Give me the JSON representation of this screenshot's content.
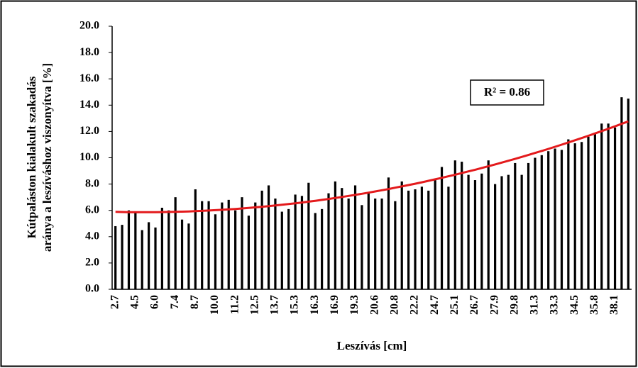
{
  "chart_data": {
    "type": "bar",
    "x_label": "Leszívás [cm]",
    "y_label": [
      "Kútpaláston kialakult szakadás",
      "aránya a leszíváshoz viszonyítva [%]"
    ],
    "annotation": "R² = 0.86",
    "categories": [
      "2.7",
      null,
      null,
      "4.5",
      null,
      null,
      "6.0",
      null,
      null,
      "7.4",
      null,
      null,
      "8.7",
      null,
      null,
      "10.0",
      null,
      null,
      "11.2",
      null,
      null,
      "12.5",
      null,
      null,
      "13.7",
      null,
      null,
      "15.3",
      null,
      null,
      "16.3",
      null,
      null,
      "16.9",
      null,
      null,
      "19.3",
      null,
      null,
      "20.6",
      null,
      null,
      "20.8",
      null,
      null,
      "22.2",
      null,
      null,
      "24.7",
      null,
      null,
      "25.1",
      null,
      null,
      "26.7",
      null,
      null,
      "27.9",
      null,
      null,
      "29.8",
      null,
      null,
      "31.3",
      null,
      null,
      "33.3",
      null,
      null,
      "34.5",
      null,
      null,
      "35.8",
      null,
      null,
      "38.1",
      null,
      null
    ],
    "values": [
      4.8,
      4.9,
      6.0,
      5.9,
      4.5,
      5.1,
      4.7,
      6.2,
      6.0,
      7.0,
      5.3,
      5.0,
      7.6,
      6.7,
      6.7,
      5.7,
      6.6,
      6.8,
      6.0,
      7.0,
      5.6,
      6.6,
      7.5,
      7.9,
      6.9,
      5.9,
      6.1,
      7.2,
      7.1,
      8.1,
      5.8,
      6.1,
      7.3,
      8.2,
      7.7,
      6.9,
      7.9,
      6.4,
      7.4,
      6.9,
      6.9,
      8.5,
      6.7,
      8.2,
      7.5,
      7.6,
      7.8,
      7.5,
      8.3,
      9.3,
      7.8,
      9.8,
      9.7,
      8.7,
      8.3,
      8.8,
      9.8,
      8.0,
      8.6,
      8.7,
      9.6,
      8.7,
      9.6,
      10.0,
      10.2,
      10.5,
      10.7,
      10.6,
      11.4,
      11.1,
      11.2,
      11.6,
      11.9,
      12.6,
      12.6,
      12.3,
      14.6,
      14.5
    ],
    "color": "#000000",
    "trendline": {
      "type": "polynomial",
      "order": 2,
      "color": "#e31a1c"
    },
    "ylim": [
      0,
      20
    ],
    "yticks": [
      {
        "value": 0,
        "label": "0.0"
      },
      {
        "value": 2,
        "label": "2.0"
      },
      {
        "value": 4,
        "label": "4.0"
      },
      {
        "value": 6,
        "label": "6.0"
      },
      {
        "value": 8,
        "label": "8.0"
      },
      {
        "value": 10,
        "label": "10.0"
      },
      {
        "value": 12,
        "label": "12.0"
      },
      {
        "value": 14,
        "label": "14.0"
      },
      {
        "value": 16,
        "label": "16.0"
      },
      {
        "value": 18,
        "label": "18.0"
      },
      {
        "value": 20,
        "label": "20.0"
      }
    ],
    "grid": false
  }
}
